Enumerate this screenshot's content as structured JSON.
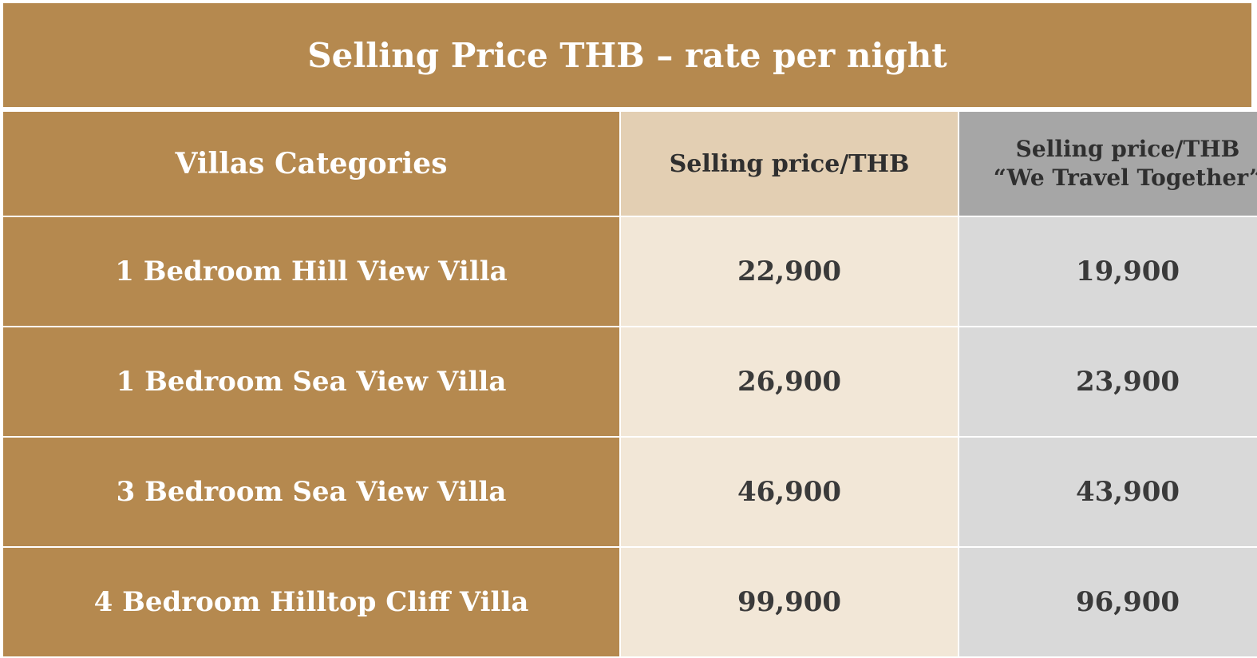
{
  "title": "Selling Price THB – rate per night",
  "headers": {
    "category": "Villas Categories",
    "selling_price": "Selling price/THB",
    "we_travel_line1": "Selling price/THB",
    "we_travel_line2": "“We Travel Together”"
  },
  "rows": [
    {
      "category": "1 Bedroom Hill View Villa",
      "selling_price": "22,900",
      "we_travel_price": "19,900"
    },
    {
      "category": "1 Bedroom Sea View Villa",
      "selling_price": "26,900",
      "we_travel_price": "23,900"
    },
    {
      "category": "3 Bedroom Sea View Villa",
      "selling_price": "46,900",
      "we_travel_price": "43,900"
    },
    {
      "category": "4 Bedroom Hilltop Cliff Villa",
      "selling_price": "99,900",
      "we_travel_price": "96,900"
    }
  ],
  "colors": {
    "gold": "#B5894F",
    "cream": "#F2E7D7",
    "tan_header": "#E3CFB3",
    "gray": "#D9D9D9",
    "gray_header": "#A6A6A6"
  }
}
